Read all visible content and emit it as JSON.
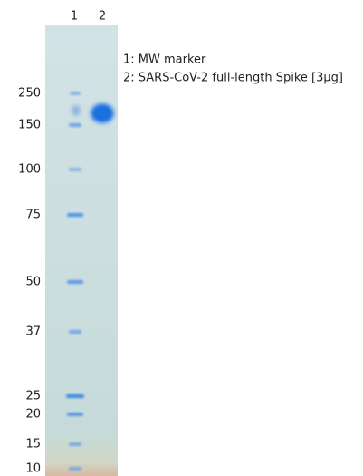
{
  "lanes": [
    "1",
    "2"
  ],
  "markers": [
    250,
    150,
    100,
    75,
    50,
    37,
    25,
    20,
    15,
    10
  ],
  "legend": [
    "1: MW marker",
    "2: SARS-CoV-2 full-length Spike [3µg]"
  ]
}
